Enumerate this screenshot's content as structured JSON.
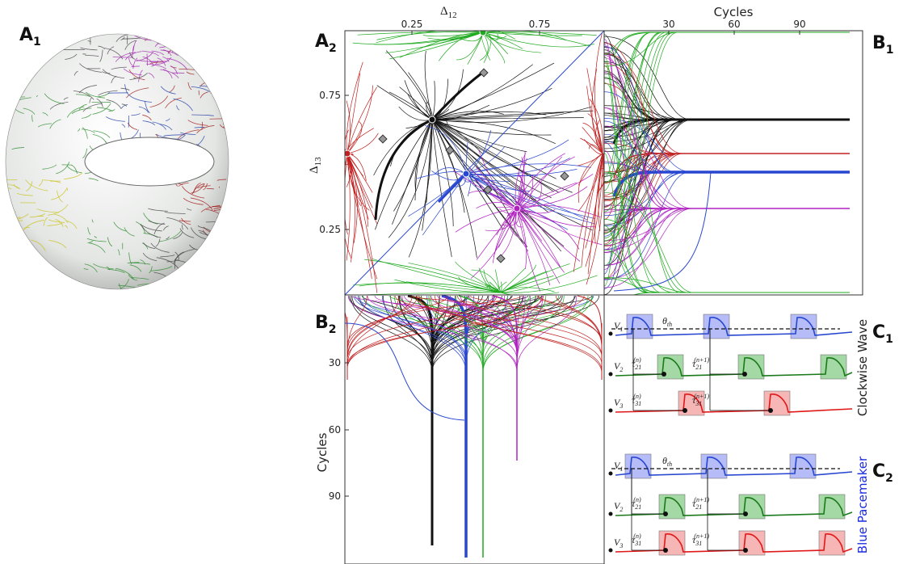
{
  "A1": {
    "label": "A",
    "sub": "1"
  },
  "A2": {
    "label": "A",
    "sub": "2",
    "x_label": "Δ",
    "x_label_sub": "12",
    "y_label": "Δ",
    "y_label_sub": "13",
    "xticks": [
      "0.25",
      "0.75"
    ],
    "yticks": [
      "0.75",
      "0.25"
    ]
  },
  "B1": {
    "label": "B",
    "sub": "1",
    "x_label": "Cycles",
    "xticks": [
      "30",
      "60",
      "90"
    ]
  },
  "B2": {
    "label": "B",
    "sub": "2",
    "y_label": "Cycles",
    "yticks": [
      "30",
      "60",
      "90"
    ]
  },
  "C1": {
    "label": "C",
    "sub": "1",
    "side_label": "Clockwise Wave",
    "traces": [
      {
        "base": "V",
        "sub": "1"
      },
      {
        "base": "V",
        "sub": "2"
      },
      {
        "base": "V",
        "sub": "3"
      }
    ],
    "threshold": {
      "base": "θ",
      "sub": "th"
    },
    "delays": [
      {
        "base": "τ",
        "sub": "21",
        "sup": "(n)"
      },
      {
        "base": "τ",
        "sub": "21",
        "sup": "(n+1)"
      },
      {
        "base": "τ",
        "sub": "31",
        "sup": "(n)"
      },
      {
        "base": "τ",
        "sub": "31",
        "sup": "(n+1)"
      }
    ]
  },
  "C2": {
    "label": "C",
    "sub": "2",
    "side_label": "Blue Pacemaker",
    "traces": [
      {
        "base": "V",
        "sub": "1"
      },
      {
        "base": "V",
        "sub": "2"
      },
      {
        "base": "V",
        "sub": "3"
      }
    ],
    "threshold": {
      "base": "θ",
      "sub": "th"
    },
    "delays": [
      {
        "base": "τ",
        "sub": "21",
        "sup": "(n)"
      },
      {
        "base": "τ",
        "sub": "21",
        "sup": "(n+1)"
      },
      {
        "base": "τ",
        "sub": "31",
        "sup": "(n)"
      },
      {
        "base": "τ",
        "sub": "31",
        "sup": "(n+1)"
      }
    ]
  }
}
